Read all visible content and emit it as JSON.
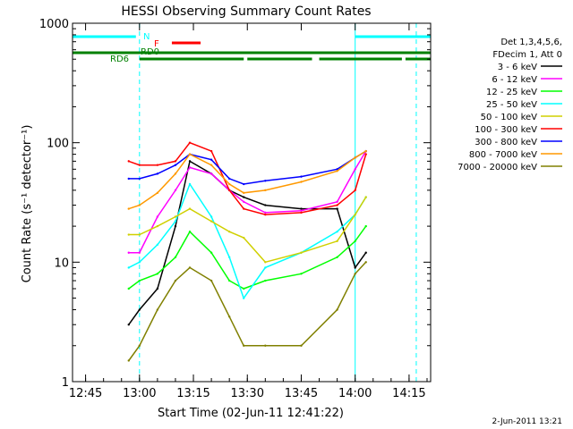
{
  "chart_data": {
    "type": "line",
    "title": "HESSI Observing Summary Count Rates",
    "xlabel": "Start Time (02-Jun-11 12:41:22)",
    "ylabel": "Count Rate (s⁻¹ detector⁻¹)",
    "yscale": "log",
    "ylim": [
      1,
      1000
    ],
    "xlim_minutes": [
      "12:41:22",
      "14:21"
    ],
    "x_ticks": [
      "12:45",
      "13:00",
      "13:15",
      "13:30",
      "13:45",
      "14:00",
      "14:15"
    ],
    "y_ticks": [
      "1",
      "10",
      "100",
      "1000"
    ],
    "grid": false,
    "legend_placement": "right",
    "legend": {
      "header": [
        "Det 1,3,4,5,6,",
        "FDecim 1, Att 0"
      ],
      "entries": [
        {
          "label": "3 - 6 keV",
          "color": "#000000"
        },
        {
          "label": "6 - 12 keV",
          "color": "#ff00ff"
        },
        {
          "label": "12 - 25 keV",
          "color": "#00ff00"
        },
        {
          "label": "25 - 50 keV",
          "color": "#00ffff"
        },
        {
          "label": "50 - 100 keV",
          "color": "#d0d000"
        },
        {
          "label": "100 - 300 keV",
          "color": "#ff0000"
        },
        {
          "label": "300 - 800 keV",
          "color": "#0000ff"
        },
        {
          "label": "800 - 7000 keV",
          "color": "#ff9900"
        },
        {
          "label": "7000 - 20000 keV",
          "color": "#808000"
        }
      ]
    },
    "series": [
      {
        "name": "3 - 6 keV",
        "x": [
          "12:57",
          "13:00",
          "13:05",
          "13:10",
          "13:14",
          "13:20",
          "13:25",
          "13:29",
          "13:35",
          "13:45",
          "13:55",
          "14:00",
          "14:03"
        ],
        "values": [
          3,
          4,
          6,
          20,
          70,
          55,
          40,
          35,
          30,
          28,
          28,
          9,
          12
        ]
      },
      {
        "name": "6 - 12 keV",
        "x": [
          "12:57",
          "13:00",
          "13:05",
          "13:10",
          "13:14",
          "13:20",
          "13:25",
          "13:29",
          "13:35",
          "13:45",
          "13:55",
          "14:00",
          "14:03"
        ],
        "values": [
          12,
          12,
          24,
          40,
          62,
          55,
          40,
          32,
          26,
          27,
          32,
          60,
          85
        ]
      },
      {
        "name": "12 - 25 keV",
        "x": [
          "12:57",
          "13:00",
          "13:05",
          "13:10",
          "13:14",
          "13:20",
          "13:25",
          "13:29",
          "13:35",
          "13:45",
          "13:55",
          "14:00",
          "14:03"
        ],
        "values": [
          6,
          7,
          8,
          11,
          18,
          12,
          7,
          6,
          7,
          8,
          11,
          15,
          20
        ]
      },
      {
        "name": "25 - 50 keV",
        "x": [
          "12:57",
          "13:00",
          "13:05",
          "13:10",
          "13:14",
          "13:20",
          "13:25",
          "13:29",
          "13:35",
          "13:45",
          "13:55",
          "14:00",
          "14:03"
        ],
        "values": [
          9,
          10,
          14,
          22,
          45,
          24,
          11,
          5,
          9,
          12,
          18,
          25,
          35
        ]
      },
      {
        "name": "50 - 100 keV",
        "x": [
          "12:57",
          "13:00",
          "13:05",
          "13:10",
          "13:14",
          "13:20",
          "13:25",
          "13:29",
          "13:35",
          "13:45",
          "13:55",
          "14:00",
          "14:03"
        ],
        "values": [
          17,
          17,
          20,
          24,
          28,
          22,
          18,
          16,
          10,
          12,
          15,
          25,
          35
        ]
      },
      {
        "name": "100 - 300 keV",
        "x": [
          "12:57",
          "13:00",
          "13:05",
          "13:10",
          "13:14",
          "13:20",
          "13:25",
          "13:29",
          "13:35",
          "13:45",
          "13:55",
          "14:00",
          "14:03"
        ],
        "values": [
          70,
          65,
          65,
          70,
          100,
          85,
          40,
          28,
          25,
          26,
          30,
          40,
          80
        ]
      },
      {
        "name": "300 - 800 keV",
        "x": [
          "12:57",
          "13:00",
          "13:05",
          "13:10",
          "13:14",
          "13:20",
          "13:25",
          "13:29",
          "13:35",
          "13:45",
          "13:55",
          "14:00",
          "14:03"
        ],
        "values": [
          50,
          50,
          55,
          65,
          80,
          72,
          50,
          45,
          48,
          52,
          60,
          75,
          85
        ]
      },
      {
        "name": "800 - 7000 keV",
        "x": [
          "12:57",
          "13:00",
          "13:05",
          "13:10",
          "13:14",
          "13:20",
          "13:25",
          "13:29",
          "13:35",
          "13:45",
          "13:55",
          "14:00",
          "14:03"
        ],
        "values": [
          28,
          30,
          38,
          55,
          80,
          65,
          45,
          38,
          40,
          47,
          58,
          75,
          85
        ]
      },
      {
        "name": "7000 - 20000 keV",
        "x": [
          "12:57",
          "13:00",
          "13:05",
          "13:10",
          "13:14",
          "13:20",
          "13:25",
          "13:29",
          "13:35",
          "13:45",
          "13:55",
          "14:00",
          "14:03"
        ],
        "values": [
          1.5,
          2,
          4,
          7,
          9,
          7,
          3.5,
          2,
          2,
          2,
          4,
          8,
          10
        ]
      }
    ],
    "flags": [
      {
        "label": "N",
        "color": "#00ffff",
        "segments": [
          [
            "12:41",
            "12:59"
          ],
          [
            "14:00",
            "14:21"
          ]
        ]
      },
      {
        "label": "F",
        "color": "#ff0000",
        "segments": [
          [
            "13:09",
            "13:17"
          ]
        ]
      },
      {
        "label": "RD0",
        "color": "#008000",
        "segments": [
          [
            "12:41",
            "14:21"
          ]
        ]
      },
      {
        "label": "RD6",
        "color": "#008000",
        "segments": [
          [
            "13:00",
            "13:29"
          ],
          [
            "13:30",
            "13:48"
          ],
          [
            "13:50",
            "14:13"
          ],
          [
            "14:14",
            "14:21"
          ]
        ]
      }
    ],
    "vertical_markers": [
      {
        "x": "13:00",
        "color": "#00ffff",
        "style": "dashed"
      },
      {
        "x": "14:00",
        "color": "#00ffff",
        "style": "solid"
      },
      {
        "x": "14:17",
        "color": "#00ffff",
        "style": "dashed"
      }
    ]
  },
  "footer": {
    "date_stamp": "2-Jun-2011 13:21"
  }
}
